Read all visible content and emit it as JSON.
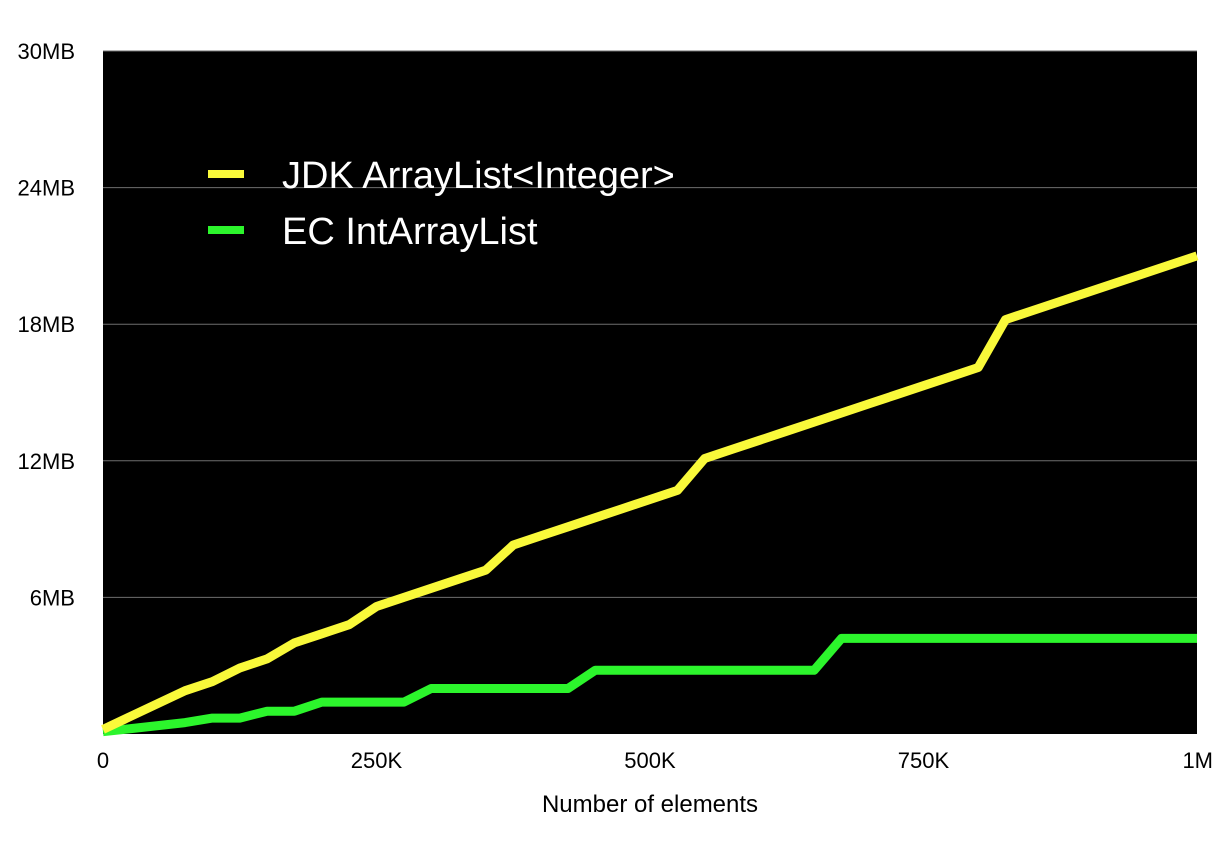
{
  "chart_data": {
    "type": "line",
    "title": "",
    "xlabel": "Number of elements",
    "ylabel": "",
    "x_ticks": [
      {
        "value": 0,
        "label": "0"
      },
      {
        "value": 250000,
        "label": "250K"
      },
      {
        "value": 500000,
        "label": "500K"
      },
      {
        "value": 750000,
        "label": "750K"
      },
      {
        "value": 1000000,
        "label": "1M"
      }
    ],
    "y_ticks": [
      {
        "value": 6,
        "label": "6MB"
      },
      {
        "value": 12,
        "label": "12MB"
      },
      {
        "value": 18,
        "label": "18MB"
      },
      {
        "value": 24,
        "label": "24MB"
      },
      {
        "value": 30,
        "label": "30MB"
      }
    ],
    "xlim": [
      0,
      1000000
    ],
    "ylim": [
      0,
      30
    ],
    "grid": "horizontal",
    "plot_background": "#000000",
    "legend_position": "top-left",
    "series": [
      {
        "name": "JDK ArrayList<Integer>",
        "color": "#f9f93a",
        "x": [
          0,
          75000,
          100000,
          125000,
          150000,
          175000,
          200000,
          225000,
          250000,
          275000,
          300000,
          325000,
          350000,
          375000,
          400000,
          425000,
          450000,
          475000,
          500000,
          525000,
          550000,
          575000,
          600000,
          625000,
          650000,
          675000,
          700000,
          725000,
          750000,
          775000,
          800000,
          825000,
          850000,
          875000,
          900000,
          925000,
          950000,
          975000,
          1000000
        ],
        "values": [
          0.2,
          1.9,
          2.3,
          2.9,
          3.3,
          4.0,
          4.4,
          4.8,
          5.6,
          6.0,
          6.4,
          6.8,
          7.2,
          8.3,
          8.7,
          9.1,
          9.5,
          9.9,
          10.3,
          10.7,
          12.1,
          12.5,
          12.9,
          13.3,
          13.7,
          14.1,
          14.5,
          14.9,
          15.3,
          15.7,
          16.1,
          18.2,
          18.6,
          19.0,
          19.4,
          19.8,
          20.2,
          20.6,
          21.0
        ]
      },
      {
        "name": "EC IntArrayList",
        "color": "#2cf52c",
        "x": [
          0,
          75000,
          100000,
          125000,
          150000,
          175000,
          200000,
          225000,
          250000,
          275000,
          300000,
          325000,
          350000,
          375000,
          400000,
          425000,
          450000,
          475000,
          500000,
          525000,
          550000,
          575000,
          600000,
          625000,
          650000,
          675000,
          700000,
          725000,
          750000,
          775000,
          800000,
          825000,
          850000,
          875000,
          900000,
          925000,
          950000,
          975000,
          1000000
        ],
        "values": [
          0.1,
          0.5,
          0.7,
          0.7,
          1.0,
          1.0,
          1.4,
          1.4,
          1.4,
          1.4,
          2.0,
          2.0,
          2.0,
          2.0,
          2.0,
          2.0,
          2.8,
          2.8,
          2.8,
          2.8,
          2.8,
          2.8,
          2.8,
          2.8,
          2.8,
          4.2,
          4.2,
          4.2,
          4.2,
          4.2,
          4.2,
          4.2,
          4.2,
          4.2,
          4.2,
          4.2,
          4.2,
          4.2,
          4.2
        ]
      }
    ]
  }
}
